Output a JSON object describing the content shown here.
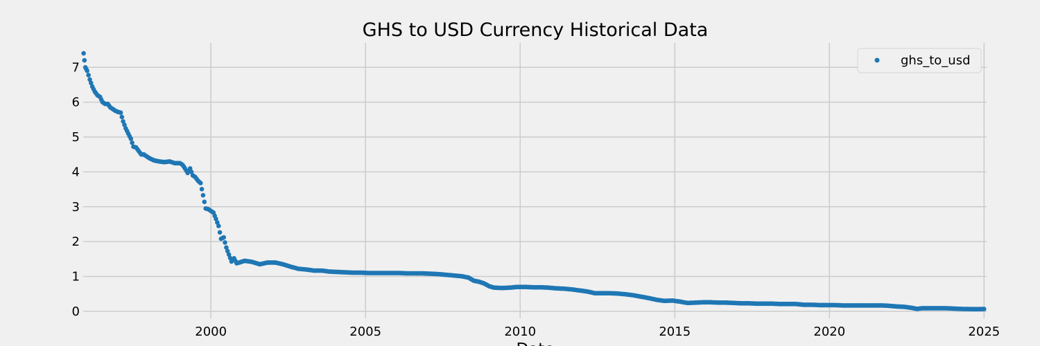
{
  "chart_data": {
    "type": "scatter",
    "title": "GHS to USD Currency Historical Data",
    "xlabel": "Date",
    "ylabel": "",
    "x_ticks": [
      "2000",
      "2005",
      "2010",
      "2015",
      "2020",
      "2025"
    ],
    "y_ticks": [
      "0",
      "1",
      "2",
      "3",
      "4",
      "5",
      "6",
      "7"
    ],
    "xlim": [
      "1995-11-15",
      "2025-01-31"
    ],
    "ylim": [
      -0.2,
      7.7
    ],
    "grid": true,
    "legend_position": "top-right",
    "series": [
      {
        "name": "ghs_to_usd",
        "color": "#1f77b4",
        "points": [
          [
            "1995-11-20",
            7.4
          ],
          [
            "1995-12-10",
            7.0
          ],
          [
            "1996-01-01",
            6.9
          ],
          [
            "1996-02-01",
            6.65
          ],
          [
            "1996-03-01",
            6.45
          ],
          [
            "1996-04-01",
            6.3
          ],
          [
            "1996-05-01",
            6.2
          ],
          [
            "1996-06-01",
            6.15
          ],
          [
            "1996-07-01",
            6.0
          ],
          [
            "1996-08-01",
            5.95
          ],
          [
            "1996-09-01",
            5.95
          ],
          [
            "1996-10-01",
            5.85
          ],
          [
            "1996-11-01",
            5.8
          ],
          [
            "1996-12-01",
            5.75
          ],
          [
            "1997-01-01",
            5.72
          ],
          [
            "1997-02-01",
            5.7
          ],
          [
            "1997-03-01",
            5.45
          ],
          [
            "1997-04-01",
            5.25
          ],
          [
            "1997-05-01",
            5.1
          ],
          [
            "1997-06-01",
            4.95
          ],
          [
            "1997-07-01",
            4.72
          ],
          [
            "1997-08-01",
            4.7
          ],
          [
            "1997-09-01",
            4.6
          ],
          [
            "1997-10-01",
            4.5
          ],
          [
            "1997-11-01",
            4.5
          ],
          [
            "1997-12-01",
            4.45
          ],
          [
            "1998-01-01",
            4.4
          ],
          [
            "1998-03-01",
            4.33
          ],
          [
            "1998-05-01",
            4.3
          ],
          [
            "1998-07-01",
            4.28
          ],
          [
            "1998-09-01",
            4.3
          ],
          [
            "1998-11-01",
            4.25
          ],
          [
            "1999-01-01",
            4.25
          ],
          [
            "1999-02-01",
            4.2
          ],
          [
            "1999-03-01",
            4.1
          ],
          [
            "1999-04-01",
            3.97
          ],
          [
            "1999-05-01",
            4.1
          ],
          [
            "1999-06-01",
            3.9
          ],
          [
            "1999-07-01",
            3.85
          ],
          [
            "1999-08-01",
            3.75
          ],
          [
            "1999-09-01",
            3.68
          ],
          [
            "1999-10-01",
            3.33
          ],
          [
            "1999-11-01",
            2.95
          ],
          [
            "1999-12-01",
            2.93
          ],
          [
            "2000-01-01",
            2.88
          ],
          [
            "2000-02-01",
            2.83
          ],
          [
            "2000-03-01",
            2.65
          ],
          [
            "2000-04-01",
            2.45
          ],
          [
            "2000-05-01",
            2.08
          ],
          [
            "2000-06-01",
            2.12
          ],
          [
            "2000-07-01",
            1.83
          ],
          [
            "2000-08-01",
            1.63
          ],
          [
            "2000-09-01",
            1.43
          ],
          [
            "2000-10-01",
            1.52
          ],
          [
            "2000-11-01",
            1.38
          ],
          [
            "2000-12-01",
            1.4
          ],
          [
            "2001-02-01",
            1.45
          ],
          [
            "2001-05-01",
            1.42
          ],
          [
            "2001-08-01",
            1.35
          ],
          [
            "2001-11-01",
            1.4
          ],
          [
            "2002-02-01",
            1.4
          ],
          [
            "2002-05-01",
            1.35
          ],
          [
            "2002-08-01",
            1.28
          ],
          [
            "2002-11-01",
            1.22
          ],
          [
            "2003-02-01",
            1.2
          ],
          [
            "2003-05-01",
            1.17
          ],
          [
            "2003-08-01",
            1.17
          ],
          [
            "2003-11-01",
            1.14
          ],
          [
            "2004-02-01",
            1.13
          ],
          [
            "2004-05-01",
            1.12
          ],
          [
            "2004-08-01",
            1.11
          ],
          [
            "2004-11-01",
            1.11
          ],
          [
            "2005-02-01",
            1.1
          ],
          [
            "2005-05-01",
            1.1
          ],
          [
            "2005-08-01",
            1.1
          ],
          [
            "2005-11-01",
            1.1
          ],
          [
            "2006-02-01",
            1.1
          ],
          [
            "2006-05-01",
            1.09
          ],
          [
            "2006-08-01",
            1.09
          ],
          [
            "2006-11-01",
            1.09
          ],
          [
            "2007-02-01",
            1.08
          ],
          [
            "2007-05-01",
            1.07
          ],
          [
            "2007-08-01",
            1.05
          ],
          [
            "2007-11-01",
            1.03
          ],
          [
            "2008-02-01",
            1.01
          ],
          [
            "2008-05-01",
            0.97
          ],
          [
            "2008-07-01",
            0.88
          ],
          [
            "2008-09-01",
            0.85
          ],
          [
            "2008-11-01",
            0.8
          ],
          [
            "2009-01-01",
            0.72
          ],
          [
            "2009-03-01",
            0.68
          ],
          [
            "2009-06-01",
            0.67
          ],
          [
            "2009-09-01",
            0.68
          ],
          [
            "2009-12-01",
            0.7
          ],
          [
            "2010-03-01",
            0.7
          ],
          [
            "2010-06-01",
            0.69
          ],
          [
            "2010-09-01",
            0.69
          ],
          [
            "2010-12-01",
            0.68
          ],
          [
            "2011-03-01",
            0.66
          ],
          [
            "2011-06-01",
            0.65
          ],
          [
            "2011-09-01",
            0.63
          ],
          [
            "2011-12-01",
            0.6
          ],
          [
            "2012-03-01",
            0.57
          ],
          [
            "2012-06-01",
            0.52
          ],
          [
            "2012-09-01",
            0.52
          ],
          [
            "2012-12-01",
            0.52
          ],
          [
            "2013-03-01",
            0.51
          ],
          [
            "2013-06-01",
            0.49
          ],
          [
            "2013-09-01",
            0.46
          ],
          [
            "2013-12-01",
            0.42
          ],
          [
            "2014-03-01",
            0.38
          ],
          [
            "2014-06-01",
            0.33
          ],
          [
            "2014-09-01",
            0.3
          ],
          [
            "2014-12-01",
            0.31
          ],
          [
            "2015-03-01",
            0.28
          ],
          [
            "2015-06-01",
            0.24
          ],
          [
            "2015-09-01",
            0.25
          ],
          [
            "2015-12-01",
            0.26
          ],
          [
            "2016-03-01",
            0.26
          ],
          [
            "2016-06-01",
            0.25
          ],
          [
            "2016-09-01",
            0.25
          ],
          [
            "2016-12-01",
            0.24
          ],
          [
            "2017-03-01",
            0.23
          ],
          [
            "2017-06-01",
            0.23
          ],
          [
            "2017-09-01",
            0.22
          ],
          [
            "2017-12-01",
            0.22
          ],
          [
            "2018-03-01",
            0.22
          ],
          [
            "2018-06-01",
            0.21
          ],
          [
            "2018-09-01",
            0.21
          ],
          [
            "2018-12-01",
            0.21
          ],
          [
            "2019-03-01",
            0.19
          ],
          [
            "2019-06-01",
            0.19
          ],
          [
            "2019-09-01",
            0.18
          ],
          [
            "2019-12-01",
            0.18
          ],
          [
            "2020-03-01",
            0.18
          ],
          [
            "2020-06-01",
            0.17
          ],
          [
            "2020-09-01",
            0.17
          ],
          [
            "2020-12-01",
            0.17
          ],
          [
            "2021-03-01",
            0.17
          ],
          [
            "2021-06-01",
            0.17
          ],
          [
            "2021-09-01",
            0.17
          ],
          [
            "2021-12-01",
            0.16
          ],
          [
            "2022-03-01",
            0.14
          ],
          [
            "2022-06-01",
            0.13
          ],
          [
            "2022-09-01",
            0.1
          ],
          [
            "2022-11-01",
            0.07
          ],
          [
            "2023-01-01",
            0.09
          ],
          [
            "2023-04-01",
            0.09
          ],
          [
            "2023-07-01",
            0.09
          ],
          [
            "2023-10-01",
            0.09
          ],
          [
            "2024-01-01",
            0.08
          ],
          [
            "2024-04-01",
            0.07
          ],
          [
            "2024-07-01",
            0.065
          ],
          [
            "2024-10-01",
            0.063
          ],
          [
            "2025-01-01",
            0.066
          ]
        ]
      }
    ]
  }
}
